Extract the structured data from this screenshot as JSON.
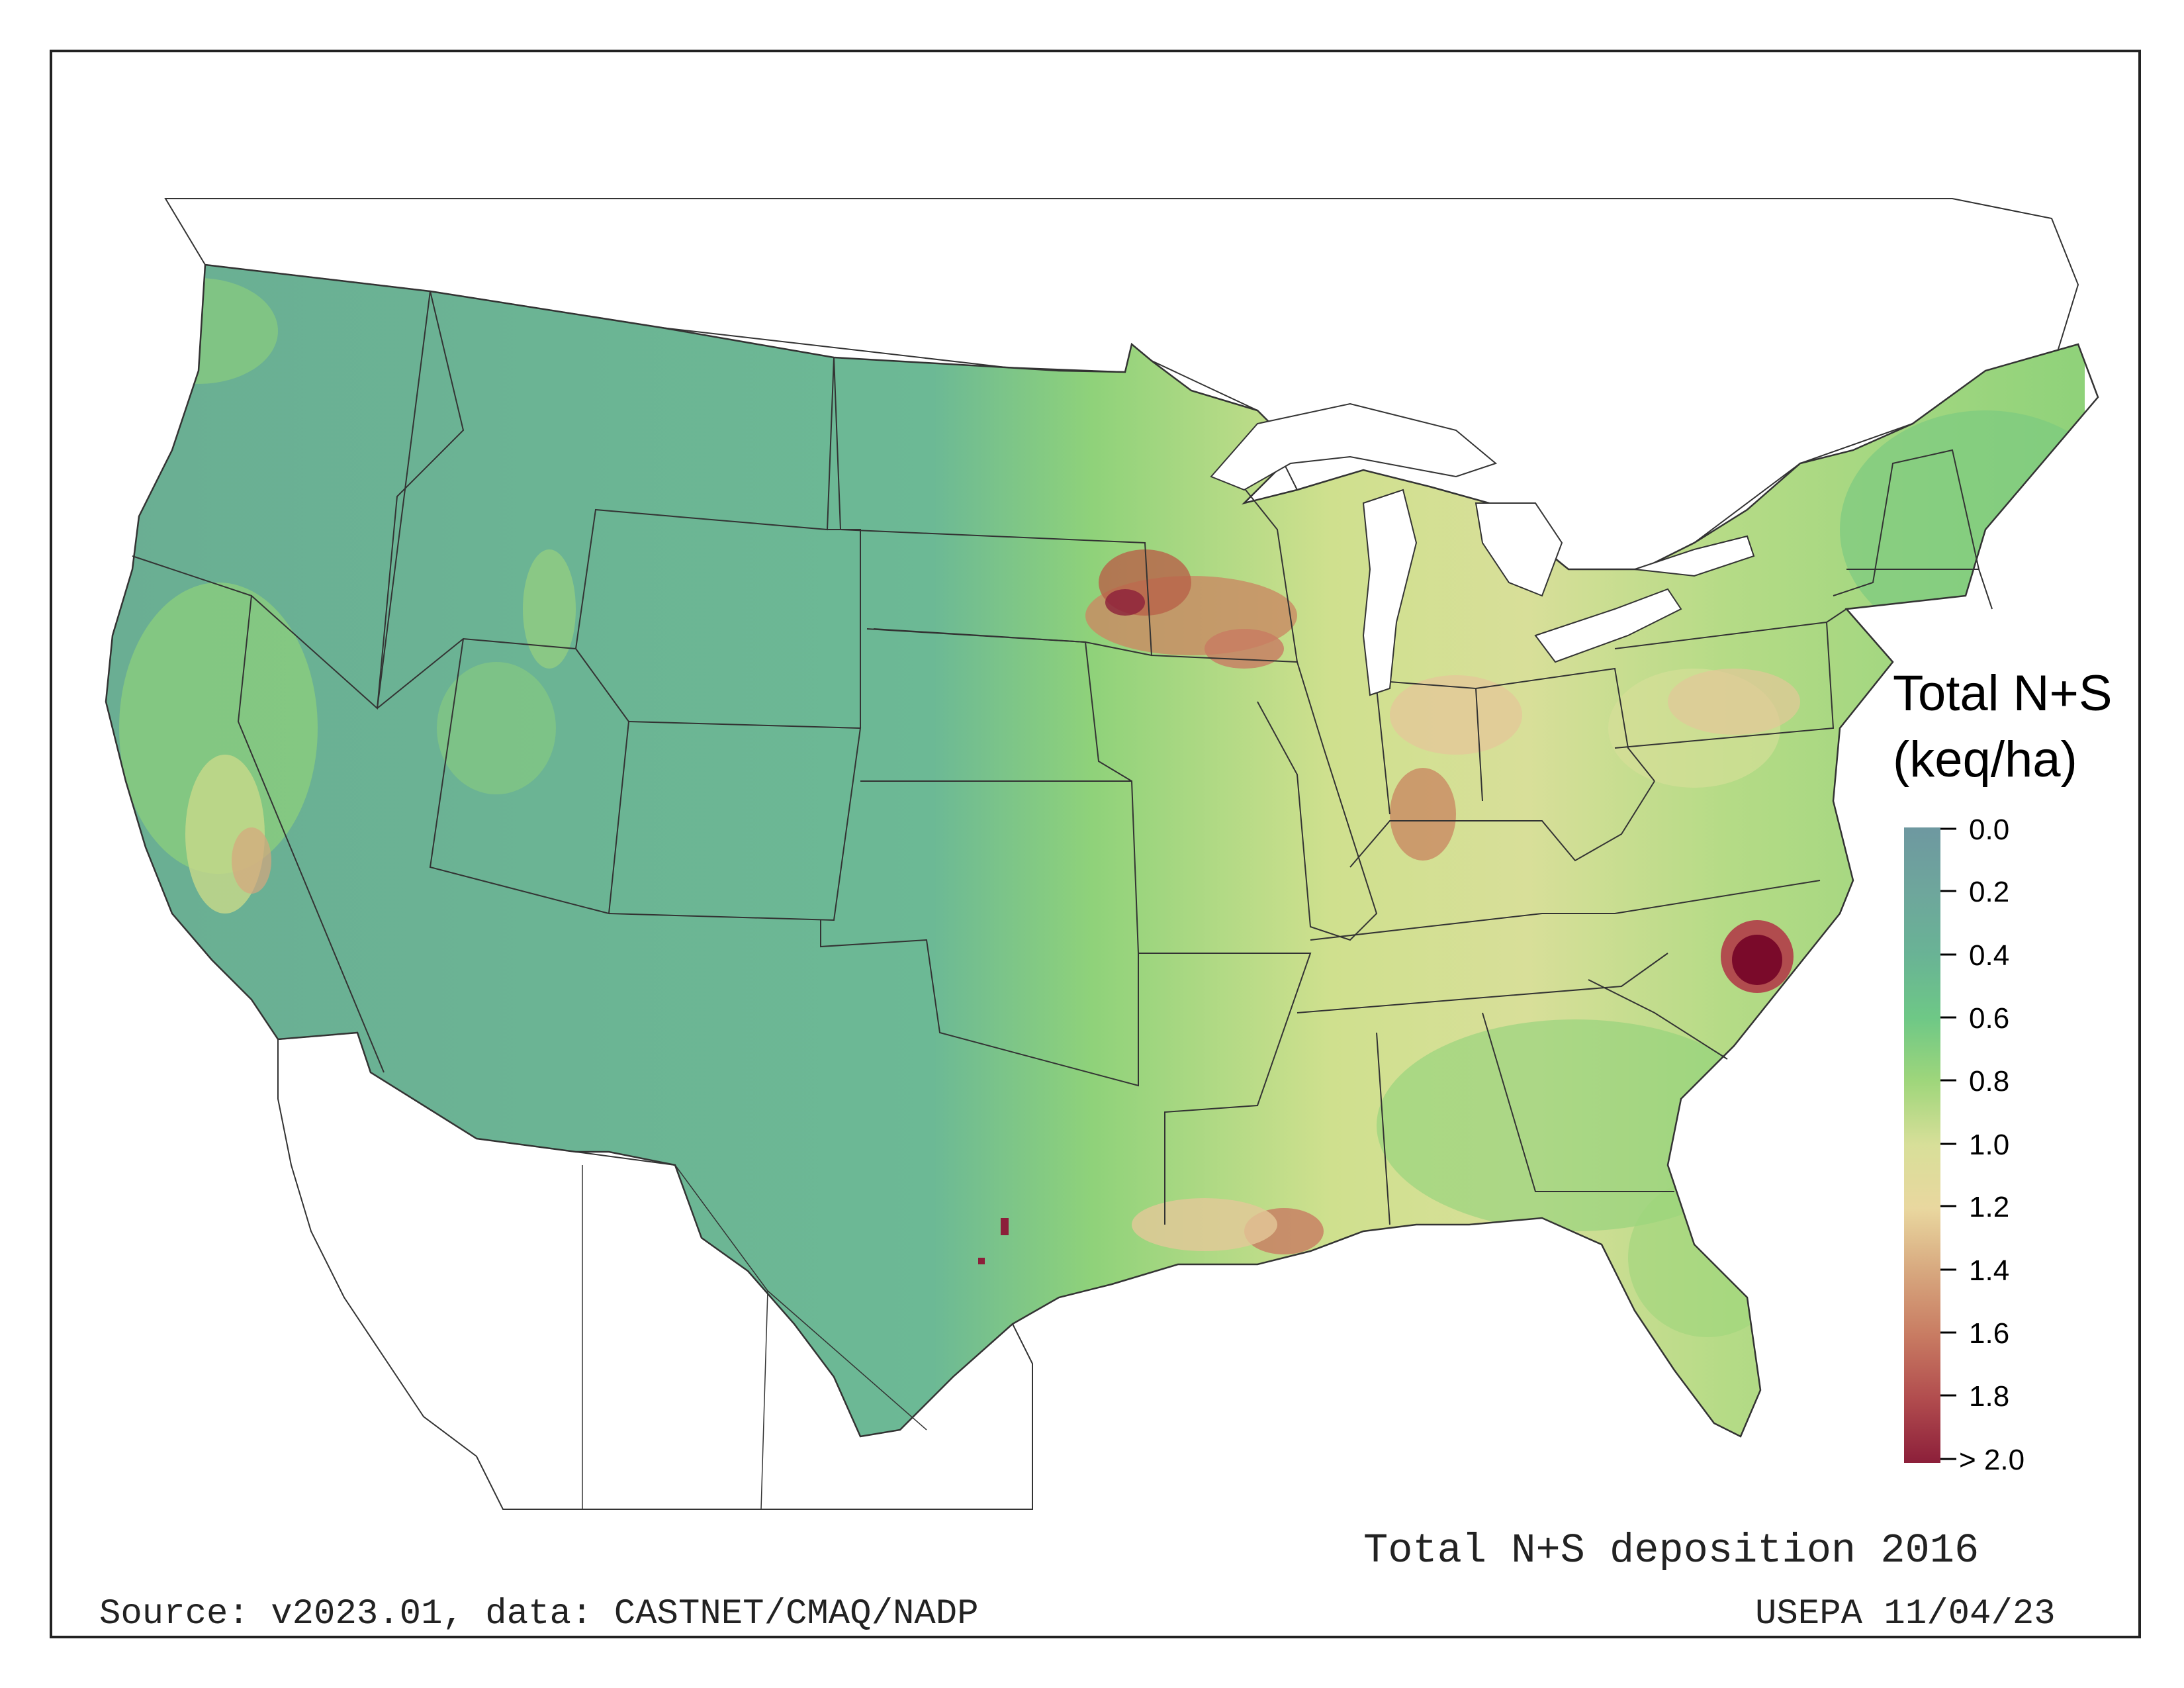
{
  "map": {
    "title": "Total N+S deposition 2016",
    "source": "Source: v2023.01, data: CASTNET/CMAQ/NADP",
    "credit": "USEPA 11/04/23",
    "legend": {
      "title_line1": "Total N+S",
      "title_line2": "(keq/ha)",
      "ticks": [
        "0.0",
        "0.2",
        "0.4",
        "0.6",
        "0.8",
        "1.0",
        "1.2",
        "1.4",
        "1.6",
        "1.8",
        "> 2.0"
      ],
      "colors": [
        "#6e98a0",
        "#6ea69c",
        "#69b395",
        "#6ec886",
        "#9fd67b",
        "#d8df99",
        "#e9d79f",
        "#d7a77e",
        "#c87b62",
        "#b14c4e",
        "#8c1f3a"
      ]
    },
    "colors": {
      "west_low": "#6aae93",
      "plains": "#8fd27a",
      "midwest": "#d8df99",
      "hotspot": "#b86249",
      "extreme": "#7a0a2a",
      "land_outside": "#ffffff",
      "boundary": "#333333"
    }
  }
}
